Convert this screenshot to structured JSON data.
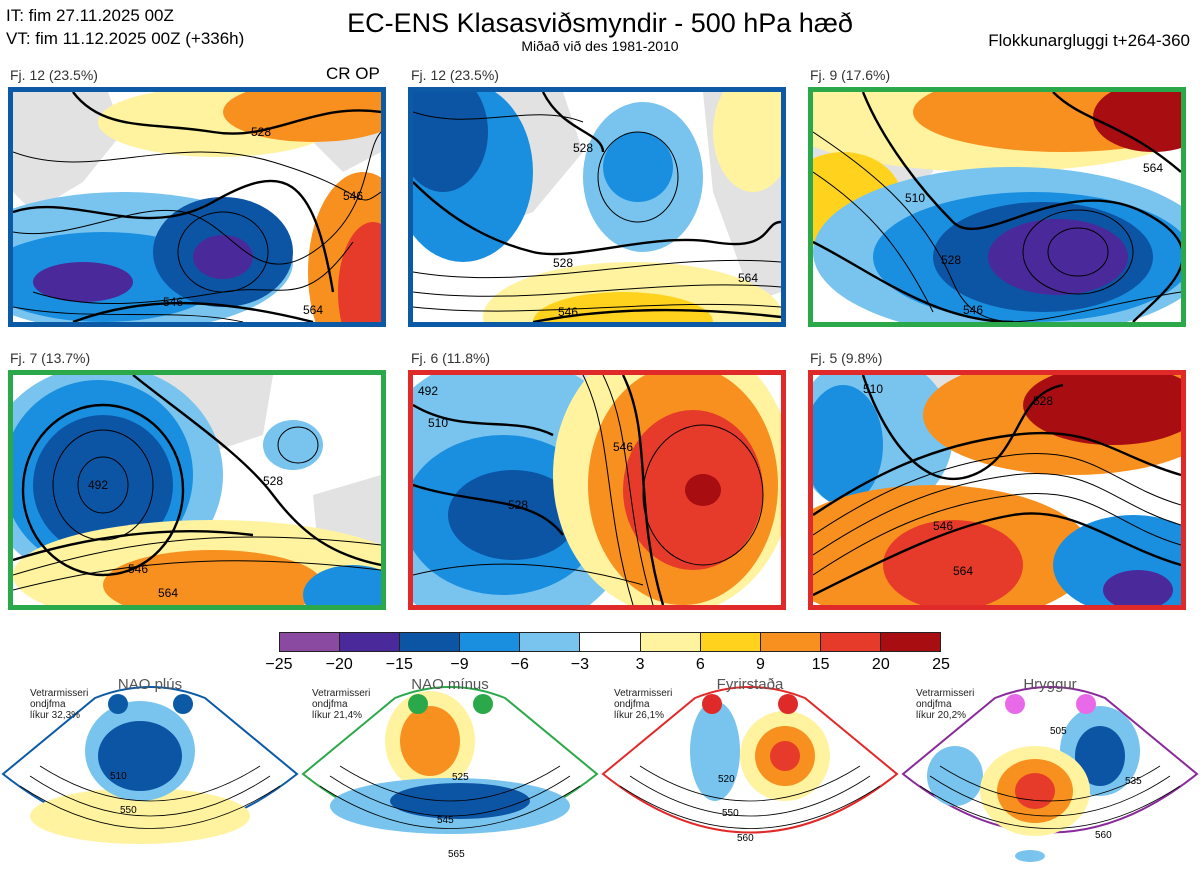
{
  "header": {
    "it_line": "IT: fim 27.11.2025 00Z",
    "vt_line": "VT: fim 11.12.2025 00Z  (+336h)",
    "title": "EC-ENS Klasasviðsmyndir - 500 hPa hæð",
    "subtitle": "Miðað við des 1981-2010",
    "window": "Flokkunargluggi t+264-360"
  },
  "cr_op": "CR OP",
  "colors": {
    "blue": "#0c5aa6",
    "green": "#2aa84a",
    "red": "#e02a2a",
    "purple": "#8a2a9a",
    "land": "#e2e2e2",
    "coast": "#8a5a3a"
  },
  "panels": [
    {
      "label": "Fj. 12 (23.5%)",
      "border": "blue",
      "contours": [
        "528",
        "546",
        "546",
        "564"
      ]
    },
    {
      "label": "Fj. 12 (23.5%)",
      "border": "blue",
      "contours": [
        "528",
        "528",
        "546",
        "564"
      ]
    },
    {
      "label": "Fj. 9 (17.6%)",
      "border": "green",
      "contours": [
        "510",
        "528",
        "546",
        "564"
      ]
    },
    {
      "label": "Fj. 7 (13.7%)",
      "border": "green",
      "contours": [
        "492",
        "528",
        "546",
        "564"
      ]
    },
    {
      "label": "Fj. 6 (11.8%)",
      "border": "red",
      "contours": [
        "492",
        "510",
        "528",
        "546"
      ]
    },
    {
      "label": "Fj. 5 (9.8%)",
      "border": "red",
      "contours": [
        "510",
        "528",
        "546",
        "564"
      ]
    }
  ],
  "colorbar": {
    "ticks": [
      "−25",
      "−20",
      "−15",
      "−9",
      "−6",
      "−3",
      "3",
      "6",
      "9",
      "15",
      "20",
      "25"
    ],
    "colors": [
      "#8a4aa2",
      "#4a2a9a",
      "#0c55a5",
      "#1a8fe0",
      "#78c4ee",
      "#ffffff",
      "#fff3a0",
      "#ffd21e",
      "#f7901e",
      "#e63a2a",
      "#a80d12"
    ]
  },
  "regimes": [
    {
      "name": "NAO plús",
      "info": [
        "Vetrarmisseri",
        "ondjfma",
        "líkur 32,3%"
      ],
      "color": "blue",
      "labels": [
        "510",
        "550"
      ]
    },
    {
      "name": "NAO mínus",
      "info": [
        "Vetrarmisseri",
        "ondjfma",
        "líkur 21,4%"
      ],
      "color": "green",
      "labels": [
        "525",
        "545",
        "565"
      ]
    },
    {
      "name": "Fyrirstaða",
      "info": [
        "Vetrarmisseri",
        "ondjfma",
        "líkur 26,1%"
      ],
      "color": "red",
      "labels": [
        "520",
        "550",
        "560"
      ]
    },
    {
      "name": "Hryggur",
      "info": [
        "Vetrarmisseri",
        "ondjfma",
        "líkur 20,2%"
      ],
      "color": "purple",
      "labels": [
        "505",
        "535",
        "560"
      ]
    }
  ]
}
